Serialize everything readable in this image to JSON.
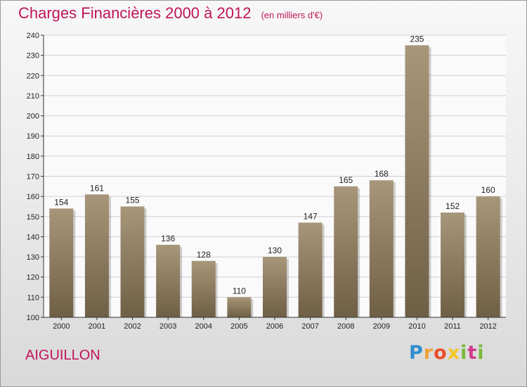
{
  "header": {
    "title": "Charges Financières 2000 à 2012",
    "subtitle": "(en milliers d'€)"
  },
  "footer": {
    "city": "AIGUILLON",
    "logo_letters": [
      "P",
      "r",
      "o",
      "x",
      "i",
      "t",
      "i"
    ]
  },
  "colors": {
    "title": "#c0155a",
    "bar_top": "#a8967a",
    "bar_bottom": "#6f5f44",
    "grid": "#d0d0d0"
  },
  "chart_data": {
    "type": "bar",
    "title": "Charges Financières 2000 à 2012",
    "subtitle": "(en milliers d'€)",
    "categories": [
      "2000",
      "2001",
      "2002",
      "2003",
      "2004",
      "2005",
      "2006",
      "2007",
      "2008",
      "2009",
      "2010",
      "2011",
      "2012"
    ],
    "values": [
      154,
      161,
      155,
      136,
      128,
      110,
      130,
      147,
      165,
      168,
      235,
      152,
      160
    ],
    "ylim": [
      100,
      240
    ],
    "yticks": [
      100,
      110,
      120,
      130,
      140,
      150,
      160,
      170,
      180,
      190,
      200,
      210,
      220,
      230,
      240
    ],
    "grid": true,
    "xlabel": "",
    "ylabel": ""
  }
}
